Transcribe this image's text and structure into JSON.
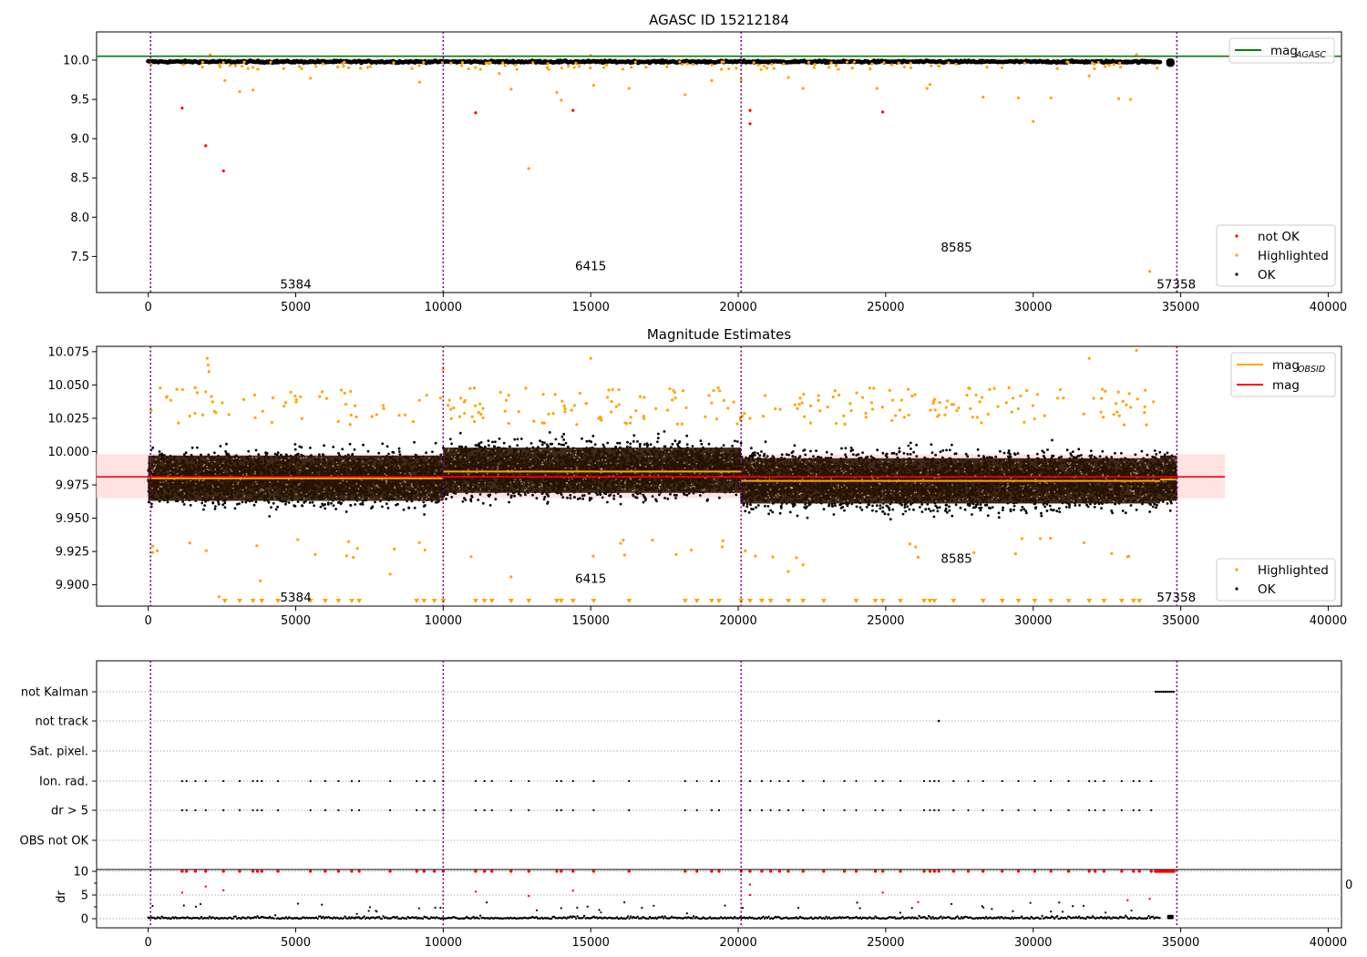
{
  "chart_data": [
    {
      "type": "scatter",
      "title": "AGASC ID 15212184",
      "xlabel": "",
      "ylabel": "",
      "xlim": [
        -1750,
        40450
      ],
      "ylim": [
        7.04,
        10.36
      ],
      "xticks": [
        0,
        5000,
        10000,
        15000,
        20000,
        25000,
        30000,
        35000,
        40000
      ],
      "xtick_labels": [
        "0",
        "5000",
        "10000",
        "15000",
        "20000",
        "25000",
        "30000",
        "35000",
        "40000"
      ],
      "yticks": [
        7.5,
        8.0,
        8.5,
        9.0,
        9.5,
        10.0
      ],
      "ytick_labels": [
        "7.5",
        "8.0",
        "8.5",
        "9.0",
        "9.5",
        "10.0"
      ],
      "reference_lines": [
        {
          "name": "mag",
          "subscript": "AGASC",
          "y": 10.05,
          "color": "#008000"
        }
      ],
      "observation_boundaries": [
        80,
        10000,
        20100,
        34870
      ],
      "observation_labels": [
        {
          "text": "5384",
          "x": 5000,
          "y": 7.15
        },
        {
          "text": "6415",
          "x": 15000,
          "y": 7.38
        },
        {
          "text": "8585",
          "x": 27400,
          "y": 7.62
        },
        {
          "text": "57358",
          "x": 34850,
          "y": 7.15
        }
      ],
      "legends": [
        {
          "position": "top-right",
          "entries": [
            {
              "name": "mag",
              "subscript": "AGASC",
              "color": "#008000",
              "kind": "line"
            }
          ]
        },
        {
          "position": "bottom-right",
          "entries": [
            {
              "name": "not OK",
              "color": "#ff0000",
              "kind": "dot"
            },
            {
              "name": "Highlighted",
              "color": "#ffa500",
              "kind": "dot"
            },
            {
              "name": "OK",
              "color": "#000000",
              "kind": "dot"
            }
          ]
        }
      ],
      "series": [
        {
          "name": "not OK",
          "color": "#ff0000",
          "points": [
            [
              1150,
              9.39
            ],
            [
              1950,
              8.91
            ],
            [
              2550,
              8.59
            ],
            [
              11100,
              9.33
            ],
            [
              14400,
              9.36
            ],
            [
              20400,
              9.36
            ],
            [
              20400,
              9.19
            ],
            [
              24900,
              9.34
            ]
          ]
        },
        {
          "name": "Highlighted",
          "color": "#ffa500",
          "points": [
            [
              2600,
              9.74
            ],
            [
              3100,
              9.6
            ],
            [
              3550,
              9.62
            ],
            [
              5500,
              9.77
            ],
            [
              9200,
              9.72
            ],
            [
              11900,
              9.83
            ],
            [
              12300,
              9.63
            ],
            [
              12900,
              8.62
            ],
            [
              13850,
              9.59
            ],
            [
              14000,
              9.49
            ],
            [
              15100,
              9.68
            ],
            [
              16300,
              9.64
            ],
            [
              18200,
              9.56
            ],
            [
              19100,
              9.74
            ],
            [
              20100,
              9.75
            ],
            [
              21700,
              9.78
            ],
            [
              22200,
              9.64
            ],
            [
              24700,
              9.64
            ],
            [
              26400,
              9.64
            ],
            [
              26500,
              9.69
            ],
            [
              28300,
              9.53
            ],
            [
              29500,
              9.52
            ],
            [
              30000,
              9.22
            ],
            [
              30600,
              9.52
            ],
            [
              31900,
              9.8
            ],
            [
              32900,
              9.51
            ],
            [
              33300,
              9.5
            ],
            [
              33950,
              7.31
            ],
            [
              2100,
              10.07
            ],
            [
              15000,
              10.06
            ],
            [
              33500,
              10.07
            ]
          ]
        },
        {
          "name": "OK",
          "color": "#000000",
          "band": {
            "x": [
              0,
              34300
            ],
            "y": 9.98
          },
          "cluster": {
            "x": 34650,
            "y": 9.98
          }
        }
      ]
    },
    {
      "type": "scatter",
      "title": "Magnitude Estimates",
      "xlabel": "",
      "ylabel": "",
      "xlim": [
        -1750,
        40450
      ],
      "ylim": [
        9.884,
        10.079
      ],
      "xticks": [
        0,
        5000,
        10000,
        15000,
        20000,
        25000,
        30000,
        35000,
        40000
      ],
      "xtick_labels": [
        "0",
        "5000",
        "10000",
        "15000",
        "20000",
        "25000",
        "30000",
        "35000",
        "40000"
      ],
      "yticks": [
        9.9,
        9.925,
        9.95,
        9.975,
        10.0,
        10.025,
        10.05,
        10.075
      ],
      "ytick_labels": [
        "9.900",
        "9.925",
        "9.950",
        "9.975",
        "10.000",
        "10.025",
        "10.050",
        "10.075"
      ],
      "observation_boundaries": [
        80,
        10000,
        20100,
        34870
      ],
      "observation_labels": [
        {
          "text": "5384",
          "x": 5000,
          "y": 9.891
        },
        {
          "text": "6415",
          "x": 15000,
          "y": 9.905
        },
        {
          "text": "8585",
          "x": 27400,
          "y": 9.92
        },
        {
          "text": "57358",
          "x": 34850,
          "y": 9.891
        }
      ],
      "mag": 9.981,
      "mag_band": [
        9.965,
        9.998
      ],
      "mag_obsid": [
        {
          "x": [
            0,
            10000
          ],
          "y": 9.98
        },
        {
          "x": [
            10000,
            20100
          ],
          "y": 9.985
        },
        {
          "x": [
            20100,
            34300
          ],
          "y": 9.978
        },
        {
          "x": [
            34300,
            34870
          ],
          "y": 9.979
        }
      ],
      "legends": [
        {
          "position": "top-right",
          "entries": [
            {
              "name": "mag",
              "subscript": "OBSID",
              "color": "#ffa500",
              "kind": "line"
            },
            {
              "name": "mag",
              "subscript": "",
              "color": "#ff0000",
              "kind": "line"
            }
          ]
        },
        {
          "position": "bottom-right",
          "entries": [
            {
              "name": "Highlighted",
              "color": "#ffa500",
              "kind": "dot"
            },
            {
              "name": "OK",
              "color": "#000000",
              "kind": "dot"
            }
          ]
        }
      ],
      "highlighted_points": [
        [
          2000,
          10.07
        ],
        [
          2030,
          10.065
        ],
        [
          2060,
          10.06
        ],
        [
          15000,
          10.07
        ],
        [
          33500,
          10.076
        ],
        [
          31900,
          10.07
        ],
        [
          10000,
          10.062
        ],
        [
          8200,
          9.908
        ],
        [
          3800,
          9.903
        ],
        [
          12300,
          9.906
        ],
        [
          2400,
          9.891
        ],
        [
          21700,
          9.91
        ],
        [
          22200,
          9.915
        ],
        [
          33200,
          9.921
        ]
      ],
      "below_range_x": [
        2600,
        3100,
        3550,
        3850,
        4400,
        5500,
        6000,
        6450,
        6900,
        7150,
        9100,
        9350,
        9700,
        10000,
        11100,
        11400,
        11650,
        12300,
        12900,
        13850,
        14000,
        14400,
        15100,
        16300,
        18200,
        18600,
        19100,
        19350,
        20100,
        20400,
        20800,
        21100,
        21700,
        22200,
        22900,
        24000,
        24650,
        24900,
        25500,
        26300,
        26500,
        26650,
        27300,
        28300,
        28950,
        29500,
        30050,
        30600,
        31200,
        31900,
        32400,
        33000,
        33400,
        33600
      ]
    },
    {
      "type": "scatter",
      "title": "",
      "xlim": [
        -1750,
        40450
      ],
      "xticks": [
        0,
        5000,
        10000,
        15000,
        20000,
        25000,
        30000,
        35000,
        40000
      ],
      "xtick_labels": [
        "0",
        "5000",
        "10000",
        "15000",
        "20000",
        "25000",
        "30000",
        "35000",
        "40000"
      ],
      "observation_boundaries": [
        80,
        10000,
        20100,
        34870
      ],
      "flag_rows": [
        "not Kalman",
        "not track",
        "Sat. pixel.",
        "Ion. rad.",
        "dr > 5",
        "OBS not OK"
      ],
      "flag_points": {
        "not Kalman": {
          "x_range": [
            34150,
            34800
          ]
        },
        "not track": {
          "x": [
            26800
          ]
        },
        "Ion. rad.": {
          "x": [
            1150,
            1300,
            1600,
            1950,
            2550,
            3100,
            3550,
            3700,
            3850,
            4400,
            5500,
            6000,
            6450,
            6900,
            7150,
            8200,
            9100,
            9350,
            9700,
            10000,
            11100,
            11400,
            11650,
            12300,
            12900,
            13850,
            14000,
            14400,
            15100,
            16300,
            18200,
            18600,
            19100,
            19350,
            20100,
            20400,
            20800,
            21100,
            21400,
            21700,
            22200,
            22900,
            23600,
            24000,
            24650,
            24900,
            25500,
            26300,
            26500,
            26650,
            26800,
            27300,
            27800,
            28300,
            28950,
            29500,
            30050,
            30600,
            31200,
            31900,
            32100,
            32400,
            33000,
            33400,
            33600,
            34000
          ]
        },
        "dr > 5": {
          "x": [
            1150,
            1300,
            1600,
            1950,
            2550,
            3100,
            3550,
            3700,
            3850,
            4400,
            5500,
            6000,
            6450,
            6900,
            7150,
            8200,
            9100,
            9350,
            9700,
            10000,
            11100,
            11400,
            11650,
            12300,
            12900,
            13850,
            14000,
            14400,
            15100,
            16300,
            18200,
            18600,
            19100,
            19350,
            20100,
            20400,
            20800,
            21100,
            21400,
            21700,
            22200,
            22900,
            23600,
            24000,
            24650,
            24900,
            25500,
            26300,
            26500,
            26650,
            26800,
            27300,
            27800,
            28300,
            28950,
            29500,
            30050,
            30600,
            31200,
            31900,
            32100,
            32400,
            33000,
            33400,
            33600,
            34000
          ]
        }
      },
      "dr": {
        "ylabel": "dr",
        "yticks": [
          0,
          5,
          10
        ],
        "ytick_labels": [
          "0",
          "5",
          "10"
        ],
        "clipped_value": 10,
        "moderate_points": [
          [
            1150,
            5.5
          ],
          [
            1950,
            6.8
          ],
          [
            2550,
            6.0
          ],
          [
            11100,
            5.7
          ],
          [
            12900,
            4.8
          ],
          [
            14400,
            5.9
          ],
          [
            20400,
            7.2
          ],
          [
            20400,
            5.0
          ],
          [
            24900,
            5.5
          ],
          [
            26100,
            3.5
          ],
          [
            33200,
            3.9
          ],
          [
            33950,
            4.2
          ]
        ],
        "stray_label": "0"
      }
    }
  ]
}
